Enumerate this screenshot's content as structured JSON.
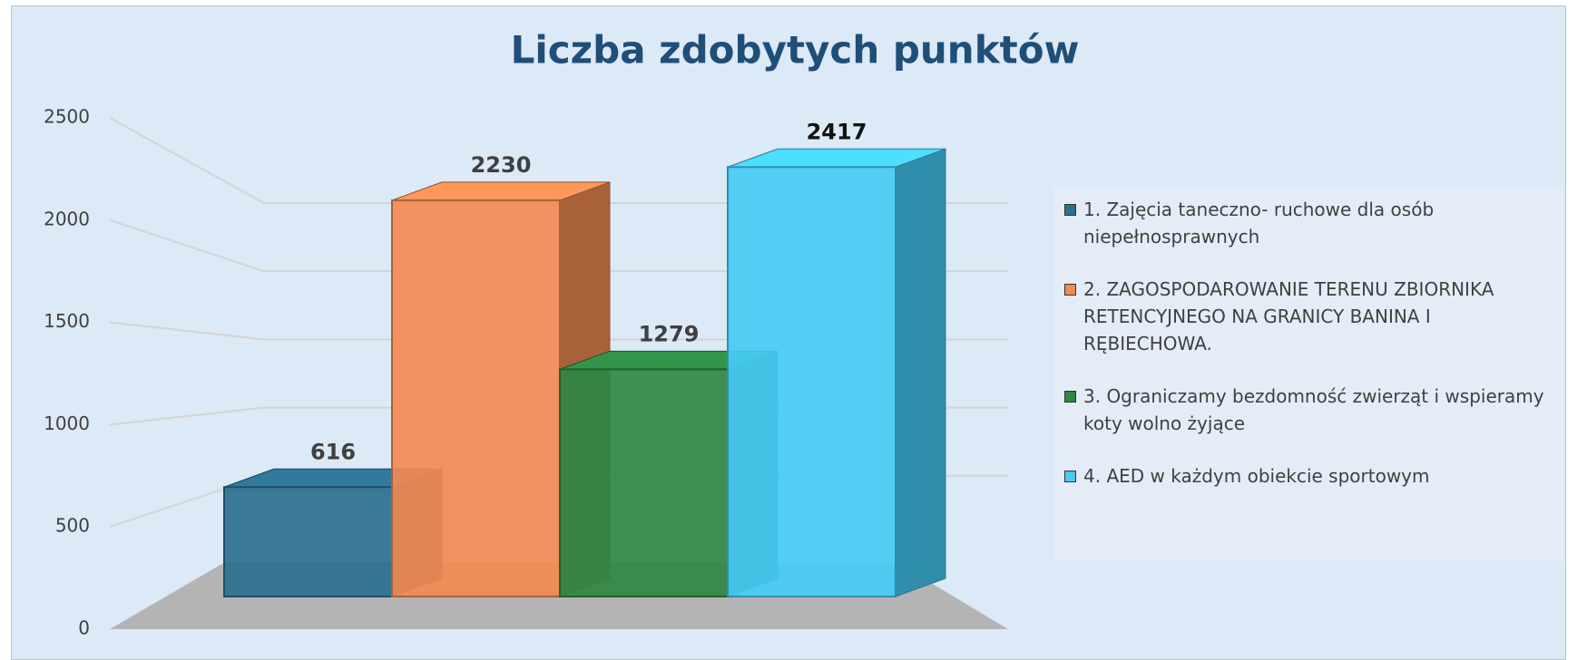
{
  "chart_data": {
    "type": "bar3d",
    "title": "Liczba zdobytych punktów",
    "series": [
      {
        "name": "1. Zajęcia taneczno- ruchowe dla osób niepełnosprawnych",
        "color": "#2d6f8f",
        "values": [
          616
        ]
      },
      {
        "name": "2. ZAGOSPODAROWANIE TERENU ZBIORNIKA RETENCYJNEGO NA GRANICY BANINA I RĘBIECHOWA.",
        "color": "#f28a52",
        "values": [
          2230
        ]
      },
      {
        "name": "3. Ograniczamy bezdomność zwierząt i wspieramy koty wolno żyjące",
        "color": "#2f8743",
        "values": [
          1279
        ]
      },
      {
        "name": "4. AED w każdym obiekcie sportowym",
        "color": "#45cbf5",
        "values": [
          2417
        ]
      }
    ],
    "ylim": [
      0,
      2500
    ],
    "yticks": [
      0,
      500,
      1000,
      1500,
      2000,
      2500
    ],
    "grid": true,
    "legend": "right"
  }
}
